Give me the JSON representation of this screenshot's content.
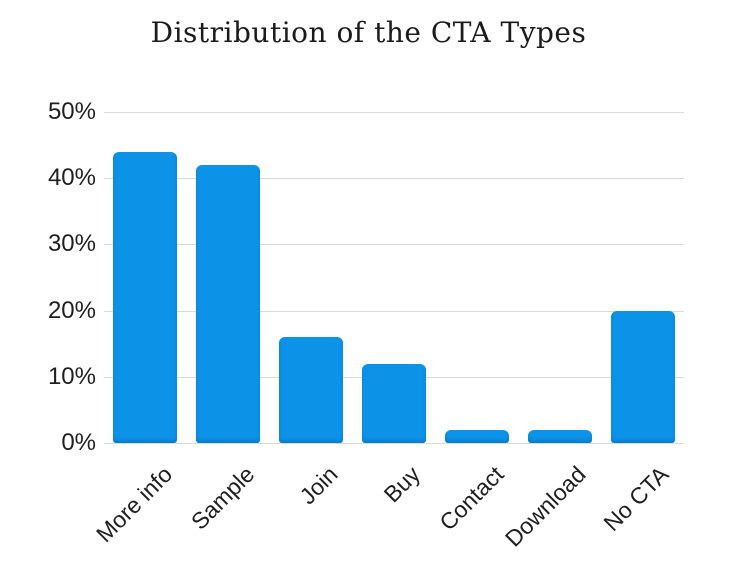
{
  "title": "Distribution of the CTA Types",
  "chart_data": {
    "type": "bar",
    "title": "Distribution of the CTA Types",
    "categories": [
      "More info",
      "Sample",
      "Join",
      "Buy",
      "Contact",
      "Download",
      "No CTA"
    ],
    "values": [
      44,
      42,
      16,
      12,
      2,
      2,
      20
    ],
    "unit": "%",
    "xlabel": "",
    "ylabel": "",
    "ylim": [
      0,
      50
    ],
    "y_ticks": [
      "50%",
      "40%",
      "30%",
      "20%",
      "10%",
      "0%"
    ],
    "grid": true,
    "legend": "none",
    "bar_color": "#0c93e8",
    "gridline_color": "#d9d9d9",
    "background_color": "#ffffff",
    "text_color": "#1f1f1f"
  }
}
